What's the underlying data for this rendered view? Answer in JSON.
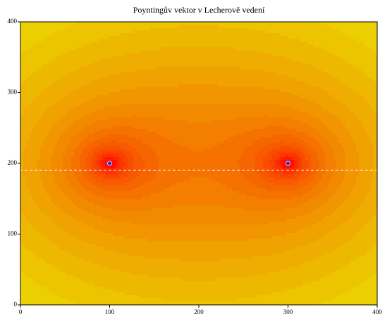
{
  "chart_data": {
    "type": "contour",
    "title": "Poyntingův vektor v Lecherově vedení",
    "points": {
      "x": [
        100,
        300
      ],
      "y": [
        200,
        200
      ],
      "color": "#2a2aa8"
    },
    "hline": 190,
    "xlim": [
      0,
      400
    ],
    "ylim": [
      0,
      400
    ],
    "xticks": [
      0,
      100,
      200,
      300,
      400
    ],
    "yticks": [
      0,
      100,
      200,
      300,
      400
    ]
  }
}
